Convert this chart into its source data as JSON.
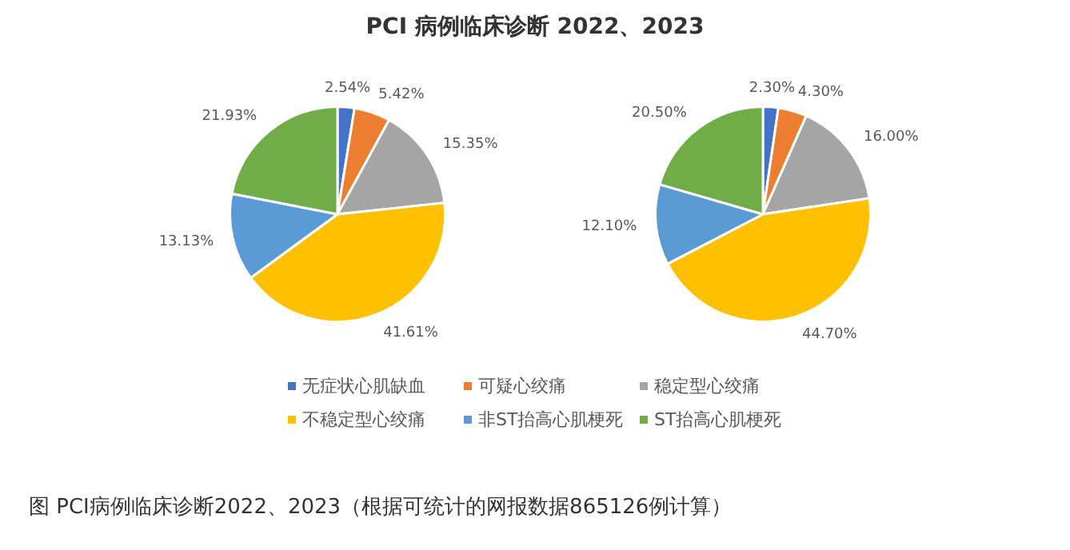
{
  "chart_data": [
    {
      "type": "pie",
      "title": "PCI 病例临床诊断 2022、2023",
      "categories": [
        "无症状心肌缺血",
        "可疑心绞痛",
        "稳定型心绞痛",
        "不稳定型心绞痛",
        "非ST抬高心肌梗死",
        "ST抬高心肌梗死"
      ],
      "values": [
        2.54,
        5.42,
        15.35,
        41.61,
        13.13,
        21.93
      ],
      "value_labels": [
        "2.54%",
        "5.42%",
        "15.35%",
        "41.61%",
        "13.13%",
        "21.93%"
      ],
      "colors": [
        "#4472c4",
        "#ed7d31",
        "#a5a5a5",
        "#ffc000",
        "#5b9bd5",
        "#70ad47"
      ],
      "legend": "bottom",
      "annotations": [
        "图 PCI病例临床诊断2022、2023（根据可统计的网报数据865126例计算）"
      ]
    },
    {
      "type": "pie",
      "categories": [
        null,
        null,
        null,
        null,
        null,
        null
      ],
      "values": [
        2.3,
        4.3,
        16.0,
        44.7,
        12.1,
        20.5
      ],
      "value_labels": [
        "2.30%",
        "4.30%",
        "16.00%",
        "44.70%",
        "12.10%",
        "20.50%"
      ],
      "colors": [
        "#4472c4",
        "#ed7d31",
        "#a5a5a5",
        "#ffc000",
        "#5b9bd5",
        "#70ad47"
      ],
      "legend": false
    }
  ]
}
